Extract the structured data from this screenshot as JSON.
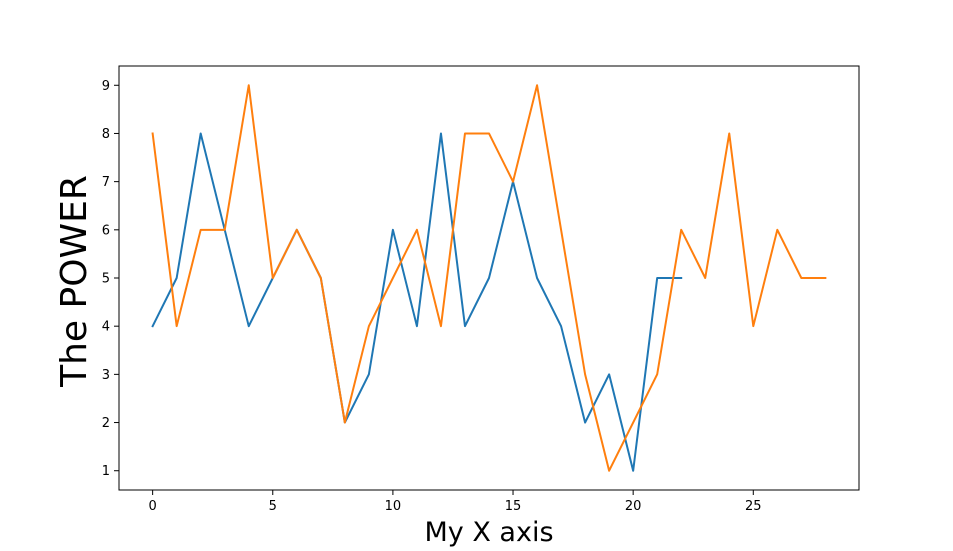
{
  "chart_data": {
    "type": "line",
    "title": "",
    "xlabel": "My X axis",
    "ylabel": "The POWER",
    "xlim": [
      -1.4,
      29.4
    ],
    "ylim": [
      0.6,
      9.4
    ],
    "xticks": [
      0,
      5,
      10,
      15,
      20,
      25
    ],
    "yticks": [
      1,
      2,
      3,
      4,
      5,
      6,
      7,
      8,
      9
    ],
    "grid": false,
    "legend": "none",
    "series": [
      {
        "color": "#1f77b4",
        "x": [
          0,
          1,
          2,
          3,
          4,
          5,
          6,
          7,
          8,
          9,
          10,
          11,
          12,
          13,
          14,
          15,
          16,
          17,
          18,
          19,
          20,
          21,
          22
        ],
        "values": [
          4,
          5,
          8,
          6,
          4,
          5,
          6,
          5,
          2,
          3,
          6,
          4,
          8,
          4,
          5,
          7,
          5,
          4,
          2,
          3,
          1,
          5,
          5
        ]
      },
      {
        "color": "#ff7f0e",
        "x": [
          0,
          1,
          2,
          3,
          4,
          5,
          6,
          7,
          8,
          9,
          10,
          11,
          12,
          13,
          14,
          15,
          16,
          17,
          18,
          19,
          20,
          21,
          22,
          23,
          24,
          25,
          26,
          27,
          28
        ],
        "values": [
          8,
          4,
          6,
          6,
          9,
          5,
          6,
          5,
          2,
          4,
          5,
          6,
          4,
          8,
          8,
          7,
          9,
          6,
          3,
          1,
          2,
          3,
          6,
          5,
          8,
          4,
          6,
          5,
          5
        ]
      }
    ]
  }
}
